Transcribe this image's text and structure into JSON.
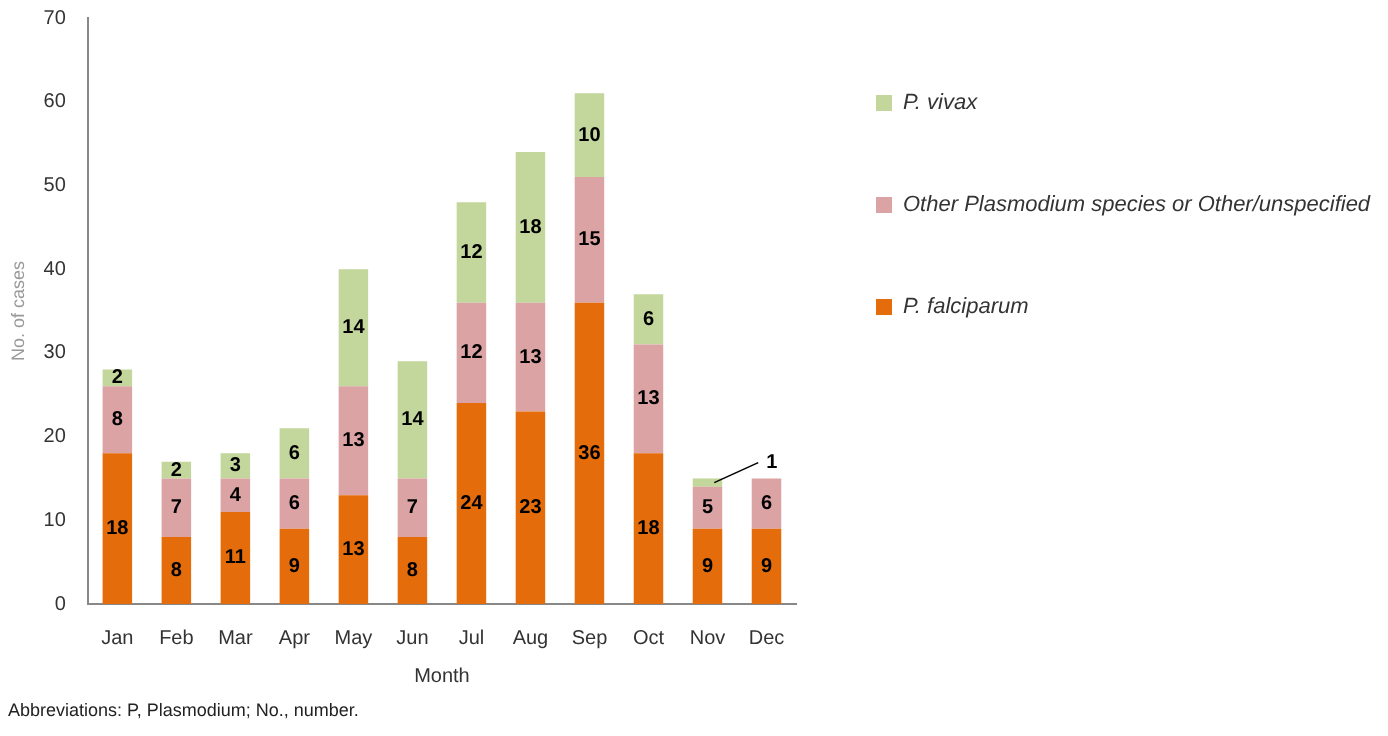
{
  "chart_data": {
    "type": "bar",
    "stacked": true,
    "xlabel": "Month",
    "ylabel": "No. of cases",
    "categories": [
      "Jan",
      "Feb",
      "Mar",
      "Apr",
      "May",
      "Jun",
      "Jul",
      "Aug",
      "Sep",
      "Oct",
      "Nov",
      "Dec"
    ],
    "series": [
      {
        "name": "P. falciparum",
        "color": "#e46c0a",
        "values": [
          18,
          8,
          11,
          9,
          13,
          8,
          24,
          23,
          36,
          18,
          9,
          9
        ]
      },
      {
        "name": "Other Plasmodium species or Other/unspecified",
        "color": "#dba3a3",
        "values": [
          8,
          7,
          4,
          6,
          13,
          7,
          12,
          13,
          15,
          13,
          5,
          6
        ]
      },
      {
        "name": "P. vivax",
        "color": "#c3d69b",
        "values": [
          2,
          2,
          3,
          6,
          14,
          14,
          12,
          18,
          10,
          6,
          1,
          null
        ]
      }
    ],
    "ylim": [
      0,
      70
    ],
    "yticks": [
      0,
      10,
      20,
      30,
      40,
      50,
      60,
      70
    ],
    "grid": false,
    "legend": "right",
    "data_labels": true,
    "annotations": [
      "Abbreviations: P, Plasmodium; No., number."
    ]
  }
}
